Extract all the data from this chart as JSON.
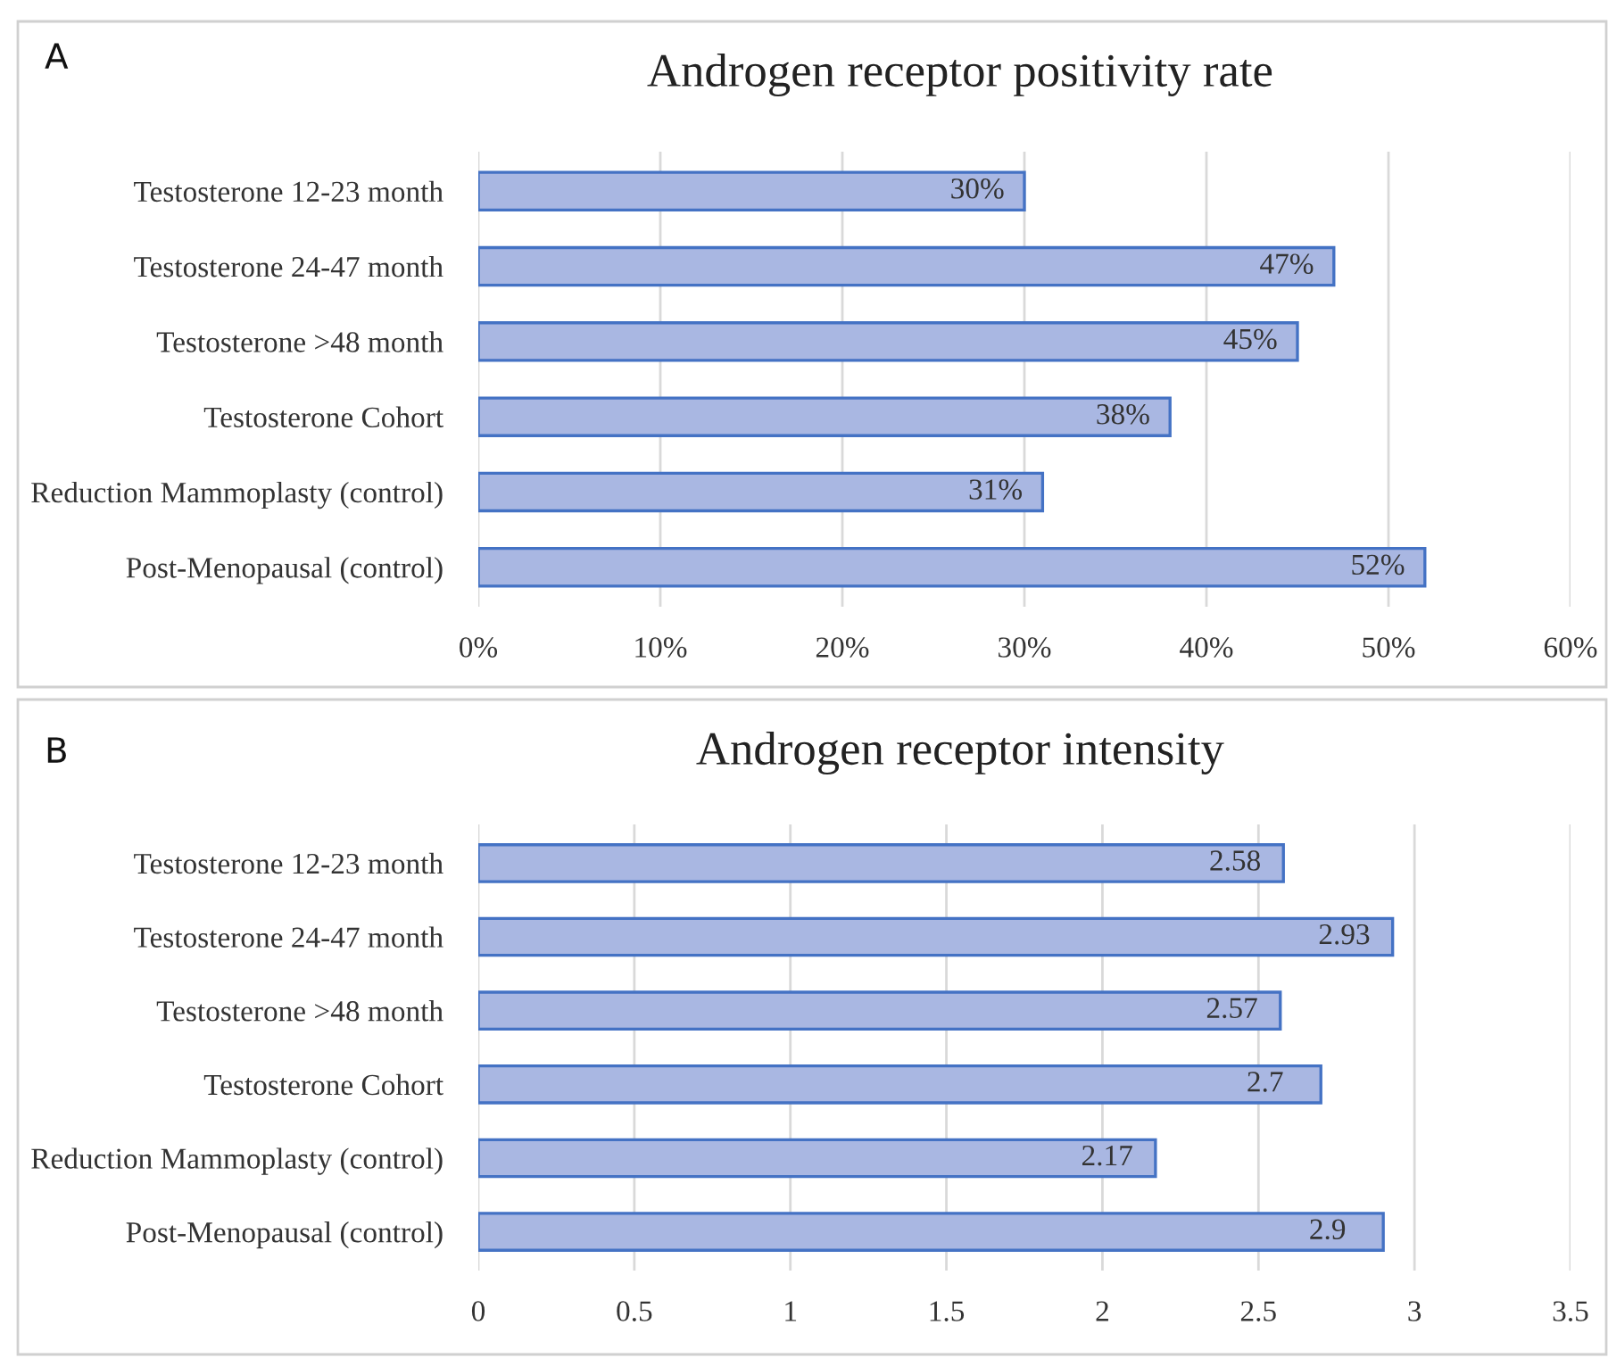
{
  "chart_data": [
    {
      "type": "bar",
      "orientation": "horizontal",
      "title": "Androgen receptor positivity rate",
      "annotations": [
        "A"
      ],
      "categories": [
        "Testosterone 12-23 month",
        "Testosterone 24-47 month",
        "Testosterone >48 month",
        "Testosterone Cohort",
        "Reduction Mammoplasty (control)",
        "Post-Menopausal (control)"
      ],
      "values": [
        30,
        47,
        45,
        38,
        31,
        52
      ],
      "value_labels": [
        "30%",
        "47%",
        "45%",
        "38%",
        "31%",
        "52%"
      ],
      "color": "#a9b7e2",
      "xlim": [
        0,
        60
      ],
      "xticks": [
        {
          "value": 0,
          "label": "0%"
        },
        {
          "value": 10,
          "label": "10%"
        },
        {
          "value": 20,
          "label": "20%"
        },
        {
          "value": 30,
          "label": "30%"
        },
        {
          "value": 40,
          "label": "40%"
        },
        {
          "value": 50,
          "label": "50%"
        },
        {
          "value": 60,
          "label": "60%"
        }
      ],
      "grid": "x"
    },
    {
      "type": "bar",
      "orientation": "horizontal",
      "title": "Androgen receptor intensity",
      "annotations": [
        "B"
      ],
      "categories": [
        "Testosterone 12-23 month",
        "Testosterone 24-47 month",
        "Testosterone >48 month",
        "Testosterone Cohort",
        "Reduction Mammoplasty (control)",
        "Post-Menopausal (control)"
      ],
      "values": [
        2.58,
        2.93,
        2.57,
        2.7,
        2.17,
        2.9
      ],
      "data_labels": true,
      "color": "#a9b7e2",
      "xlim": [
        0,
        3.5
      ],
      "xticks": [
        0,
        0.5,
        1,
        1.5,
        2,
        2.5,
        3,
        3.5
      ],
      "grid": "x"
    }
  ]
}
